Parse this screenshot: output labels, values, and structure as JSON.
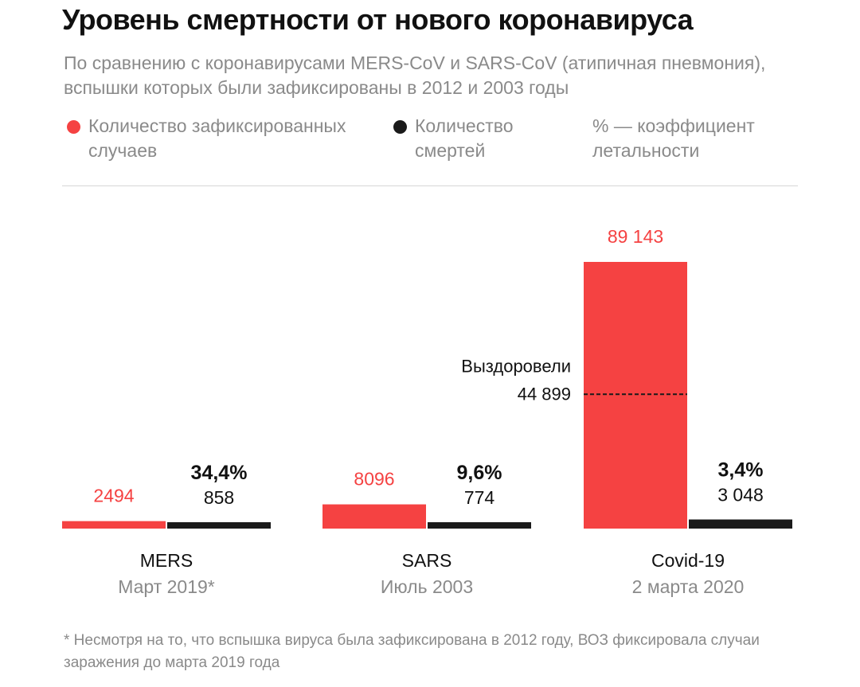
{
  "title": "Уровень смертности от нового коронавируса",
  "subtitle": "По сравнению с коронавирусами MERS-CoV и SARS-CoV (атипичная пневмония), вспышки которых были зафиксированы в 2012 и 2003 годы",
  "legend": {
    "cases": "Количество зафиксированных случаев",
    "deaths": "Количество смертей",
    "rate": "% — коэффициент летальности"
  },
  "colors": {
    "cases": "#f54242",
    "deaths": "#1a1a1a",
    "muted": "#8a8a8a"
  },
  "footnote": "* Несмотря на то, что вспышка вируса была зафиксирована в 2012 году, ВОЗ фиксировала случаи заражения до марта 2019 года",
  "chart_data": {
    "type": "bar",
    "categories": [
      "MERS",
      "SARS",
      "Covid-19"
    ],
    "dates": [
      "Март 2019*",
      "Июль 2003",
      "2 марта 2020"
    ],
    "series": [
      {
        "name": "Количество зафиксированных случаев",
        "values": [
          2494,
          8096,
          89143
        ],
        "labels": [
          "2494",
          "8096",
          "89 143"
        ]
      },
      {
        "name": "Количество смертей",
        "values": [
          858,
          774,
          3048
        ],
        "labels": [
          "858",
          "774",
          "3 048"
        ]
      }
    ],
    "rates": [
      "34,4%",
      "9,6%",
      "3,4%"
    ],
    "annotation": {
      "category": "Covid-19",
      "label": "Выздоровели",
      "value": 44899,
      "value_label": "44 899"
    }
  }
}
